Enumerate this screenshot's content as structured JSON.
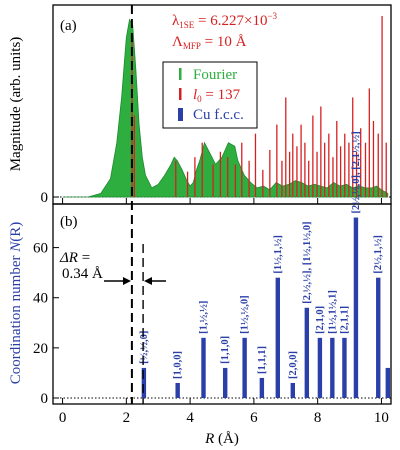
{
  "chart_data": [
    {
      "panel_label": "(a)",
      "type": "line",
      "ylabel": "Magnitude (arb. units)",
      "y_ticks": [
        "0"
      ],
      "annotations": {
        "lambda_line": "λ1SE = 6.227×10⁻³",
        "lambda_sym": "λ",
        "lambda_sub": "1SE",
        "lambda_val": " = 6.227×10",
        "lambda_exp": "−3",
        "mfp_sym": "Λ",
        "mfp_sub": "MFP",
        "mfp_val": " = 10 Å"
      },
      "legend": {
        "placement": "upper-center",
        "entries": [
          {
            "label": "Fourier",
            "color": "#2eae3f"
          },
          {
            "label_italic": "l",
            "label_sub": "0",
            "label_rest": " = 137",
            "color": "#d62020"
          },
          {
            "label": "Cu f.c.c.",
            "color": "#2a3fa8"
          }
        ]
      },
      "series": [
        {
          "style": "filled",
          "color": "#2eae3f",
          "x": [
            0.0,
            0.8,
            1.2,
            1.5,
            1.7,
            1.85,
            2.0,
            2.1,
            2.2,
            2.3,
            2.4,
            2.5,
            2.6,
            2.8,
            3.0,
            3.2,
            3.4,
            3.5,
            3.6,
            3.75,
            3.9,
            4.0,
            4.1,
            4.2,
            4.3,
            4.45,
            4.6,
            4.8,
            5.0,
            5.2,
            5.4,
            5.5,
            5.7,
            5.9,
            6.1,
            6.3,
            6.5,
            6.7,
            6.9,
            7.1,
            7.3,
            7.5,
            7.7,
            7.9,
            8.1,
            8.3,
            8.5,
            8.7,
            8.9,
            9.1,
            9.3,
            9.5,
            9.7,
            9.85,
            10.0,
            10.1,
            10.2
          ],
          "y": [
            0.0,
            0.0,
            0.02,
            0.1,
            0.3,
            0.55,
            0.88,
            0.98,
            0.95,
            0.7,
            0.4,
            0.22,
            0.12,
            0.05,
            0.07,
            0.12,
            0.18,
            0.22,
            0.2,
            0.15,
            0.09,
            0.06,
            0.08,
            0.15,
            0.2,
            0.3,
            0.25,
            0.18,
            0.22,
            0.3,
            0.28,
            0.2,
            0.12,
            0.08,
            0.05,
            0.06,
            0.04,
            0.08,
            0.06,
            0.07,
            0.09,
            0.08,
            0.06,
            0.07,
            0.06,
            0.05,
            0.08,
            0.06,
            0.07,
            0.05,
            0.06,
            0.05,
            0.05,
            0.06,
            0.04,
            0.03,
            0.02
          ]
        },
        {
          "style": "sticks",
          "color": "#d62020",
          "x": [
            2.18,
            2.25,
            3.55,
            3.92,
            4.15,
            4.38,
            4.72,
            4.95,
            5.18,
            5.42,
            5.62,
            5.85,
            6.05,
            6.28,
            6.5,
            6.72,
            6.88,
            7.0,
            7.12,
            7.22,
            7.35,
            7.48,
            7.6,
            7.72,
            7.85,
            7.98,
            8.1,
            8.22,
            8.35,
            8.48,
            8.6,
            8.72,
            8.85,
            8.98,
            9.1,
            9.22,
            9.35,
            9.5,
            9.62,
            9.75,
            9.9,
            10.02,
            10.15
          ],
          "y": [
            0.9,
            0.45,
            0.2,
            0.14,
            0.22,
            0.3,
            0.18,
            0.25,
            0.22,
            0.18,
            0.3,
            0.2,
            0.35,
            0.15,
            0.26,
            0.4,
            0.2,
            0.55,
            0.25,
            0.35,
            0.28,
            0.4,
            0.3,
            0.2,
            0.45,
            0.25,
            0.5,
            0.3,
            0.35,
            0.22,
            0.42,
            0.28,
            0.35,
            0.3,
            0.55,
            0.25,
            0.38,
            0.3,
            0.6,
            0.42,
            0.35,
            1.0,
            0.3
          ]
        }
      ]
    },
    {
      "panel_label": "(b)",
      "type": "bar",
      "xlabel_italic": "R",
      "xlabel_rest": " (Å)",
      "ylabel_text": "Coordination number ",
      "ylabel_italic": "N",
      "ylabel_paren": "(R)",
      "x_ticks": [
        "0",
        "2",
        "4",
        "6",
        "8",
        "10"
      ],
      "y_ticks": [
        "0",
        "20",
        "40",
        "60"
      ],
      "xlim": [
        -0.3,
        10.3
      ],
      "ylim": [
        0,
        75
      ],
      "color": "#2a3fa8",
      "delta_r": {
        "label_italic": "ΔR",
        "label_rest": " =",
        "value": "0.34 Å",
        "x1": 2.2,
        "x2": 2.55
      },
      "bars": [
        {
          "x": 2.55,
          "n": 12,
          "label": "[½,½,0]"
        },
        {
          "x": 3.61,
          "n": 6,
          "label": "[1,0,0]"
        },
        {
          "x": 4.42,
          "n": 24,
          "label": "[1,½,½]"
        },
        {
          "x": 5.1,
          "n": 12,
          "label": "[1,1,0]"
        },
        {
          "x": 5.71,
          "n": 24,
          "label": "[1½,½,0]"
        },
        {
          "x": 6.25,
          "n": 8,
          "label": "[1,1,1]"
        },
        {
          "x": 6.75,
          "n": 48,
          "label": "[1½,1,½]"
        },
        {
          "x": 7.22,
          "n": 6,
          "label": "[2,0,0]"
        },
        {
          "x": 7.66,
          "n": 36,
          "label": "[2,½,½], [1½,1½,0]"
        },
        {
          "x": 8.07,
          "n": 24,
          "label": "[2,1,0]"
        },
        {
          "x": 8.46,
          "n": 24,
          "label": "[1½,1½,1]"
        },
        {
          "x": 8.84,
          "n": 24,
          "label": "[2,1,1]"
        },
        {
          "x": 9.2,
          "n": 72,
          "label": "[2½,½,0], [2,1½,½]"
        },
        {
          "x": 9.9,
          "n": 48,
          "label": "[2½,1,½]"
        },
        {
          "x": 10.2,
          "n": 12,
          "label": ""
        }
      ]
    }
  ]
}
